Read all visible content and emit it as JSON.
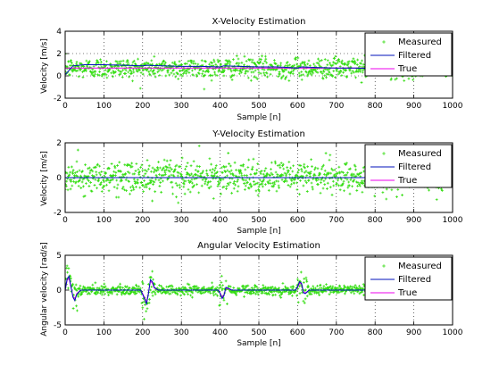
{
  "colors": {
    "measured": "#33dd11",
    "filtered": "#0011bb",
    "true": "#ee00ee"
  },
  "legend": {
    "measured": "Measured",
    "filtered": "Filtered",
    "true": "True",
    "placement": "top-right"
  },
  "chart_data": [
    {
      "type": "scatter",
      "title": "X-Velocity Estimation",
      "xlabel": "Sample [n]",
      "ylabel": "Velocity [m/s]",
      "xlim": [
        0,
        1000
      ],
      "ylim": [
        -2,
        4
      ],
      "xticks": [
        "0",
        "100",
        "200",
        "300",
        "400",
        "500",
        "600",
        "700",
        "800",
        "900",
        "1000"
      ],
      "yticks": [
        "-2",
        "0",
        "2",
        "4"
      ],
      "grid": "dotted",
      "series": [
        {
          "name": "Measured",
          "style": "markers",
          "mean": 0.7,
          "noise_sd": 0.45
        },
        {
          "name": "Filtered",
          "style": "line",
          "x": [
            0,
            20,
            50,
            100,
            150,
            200,
            210,
            250,
            300,
            350,
            400,
            410,
            450,
            500,
            550,
            600,
            610,
            650,
            700,
            750,
            800,
            1000
          ],
          "y": [
            0.1,
            0.9,
            1.0,
            1.0,
            0.95,
            0.9,
            0.95,
            0.9,
            0.85,
            0.85,
            0.8,
            0.9,
            0.85,
            0.8,
            0.8,
            0.7,
            0.8,
            0.75,
            0.7,
            0.7,
            0.65,
            0.6
          ]
        },
        {
          "name": "True",
          "style": "line",
          "x": [
            0,
            1000
          ],
          "y": [
            0.7,
            0.7
          ]
        }
      ]
    },
    {
      "type": "scatter",
      "title": "Y-Velocity Estimation",
      "xlabel": "Sample [n]",
      "ylabel": "Velocity [m/s]",
      "xlim": [
        0,
        1000
      ],
      "ylim": [
        -2,
        2
      ],
      "xticks": [
        "0",
        "100",
        "200",
        "300",
        "400",
        "500",
        "600",
        "700",
        "800",
        "900",
        "1000"
      ],
      "yticks": [
        "-2",
        "0",
        "2"
      ],
      "grid": "dotted",
      "series": [
        {
          "name": "Measured",
          "style": "markers",
          "mean": 0.0,
          "noise_sd": 0.45
        },
        {
          "name": "Filtered",
          "style": "line",
          "x": [
            0,
            1000
          ],
          "y": [
            0.0,
            0.0
          ]
        },
        {
          "name": "True",
          "style": "line",
          "x": [
            0,
            1000
          ],
          "y": [
            0.0,
            0.0
          ]
        }
      ]
    },
    {
      "type": "scatter",
      "title": "Angular Velocity Estimation",
      "xlabel": "Sample [n]",
      "ylabel": "Angular velocity [rad/s]",
      "xlim": [
        0,
        1000
      ],
      "ylim": [
        -5,
        5
      ],
      "xticks": [
        "0",
        "100",
        "200",
        "300",
        "400",
        "500",
        "600",
        "700",
        "800",
        "900",
        "1000"
      ],
      "yticks": [
        "-5",
        "0",
        "5"
      ],
      "grid": "dotted",
      "series": [
        {
          "name": "Measured",
          "style": "markers",
          "mean": 0.0,
          "noise_sd": 0.35,
          "noise_peak_sd": 1.1
        },
        {
          "name": "Filtered",
          "style": "line",
          "x": [
            0,
            5,
            10,
            15,
            20,
            25,
            30,
            40,
            195,
            200,
            205,
            210,
            215,
            220,
            225,
            230,
            240,
            395,
            400,
            405,
            410,
            415,
            420,
            430,
            595,
            600,
            605,
            610,
            615,
            620,
            630,
            1000
          ],
          "y": [
            0,
            1.6,
            2.0,
            0.5,
            -1.0,
            -1.5,
            -0.6,
            0,
            0,
            -0.6,
            -1.3,
            -2.0,
            -0.5,
            1.5,
            1.2,
            0.4,
            0,
            0,
            -0.5,
            -1.2,
            -0.8,
            0.4,
            0.3,
            0,
            0,
            0.5,
            1.2,
            1.0,
            -0.4,
            -0.5,
            0,
            0
          ]
        },
        {
          "name": "True",
          "style": "line",
          "x": [
            0,
            5,
            10,
            15,
            20,
            25,
            30,
            40,
            195,
            200,
            205,
            210,
            215,
            220,
            225,
            230,
            240,
            395,
            400,
            405,
            410,
            415,
            420,
            430,
            595,
            600,
            605,
            610,
            615,
            620,
            630,
            1000
          ],
          "y": [
            0,
            1.4,
            1.7,
            0.4,
            -0.9,
            -1.3,
            -0.5,
            0,
            0,
            -0.5,
            -1.1,
            -1.8,
            -0.4,
            1.3,
            1.0,
            0.3,
            0,
            0,
            -0.4,
            -1.0,
            -0.7,
            0.3,
            0.2,
            0,
            0,
            0.4,
            1.0,
            0.9,
            -0.3,
            -0.4,
            0,
            0
          ]
        }
      ]
    }
  ]
}
